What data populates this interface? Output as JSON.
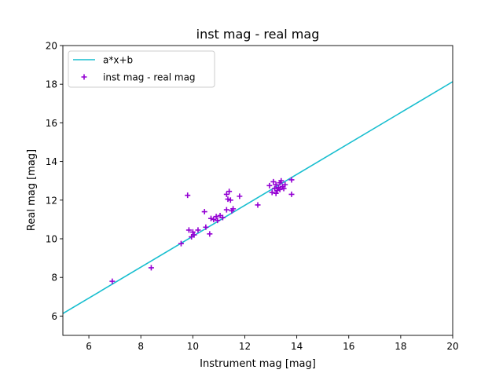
{
  "chart_data": {
    "type": "scatter",
    "title": "inst mag - real mag",
    "xlabel": "Instrument mag [mag]",
    "ylabel": "Real mag [mag]",
    "xlim": [
      5,
      20
    ],
    "ylim": [
      5,
      20
    ],
    "xticks": [
      "6",
      "8",
      "10",
      "12",
      "14",
      "16",
      "18",
      "20"
    ],
    "yticks": [
      "6",
      "8",
      "10",
      "12",
      "14",
      "16",
      "18",
      "20"
    ],
    "grid": false,
    "legend_position": "upper-left",
    "fit_line": {
      "label": "a*x+b",
      "color": "#17becf",
      "points": [
        [
          5.0,
          6.13
        ],
        [
          20.0,
          18.13
        ]
      ]
    },
    "series": [
      {
        "name": "inst mag - real mag",
        "marker": "+",
        "color": "#9400d3",
        "points": [
          [
            6.9,
            7.8
          ],
          [
            8.4,
            8.5
          ],
          [
            9.55,
            9.75
          ],
          [
            9.8,
            12.25
          ],
          [
            9.85,
            10.45
          ],
          [
            9.95,
            10.1
          ],
          [
            10.0,
            10.35
          ],
          [
            10.05,
            10.2
          ],
          [
            10.2,
            10.45
          ],
          [
            10.45,
            11.4
          ],
          [
            10.5,
            10.6
          ],
          [
            10.65,
            10.25
          ],
          [
            10.7,
            11.05
          ],
          [
            10.8,
            11.0
          ],
          [
            10.9,
            11.15
          ],
          [
            10.95,
            10.95
          ],
          [
            11.05,
            11.2
          ],
          [
            11.15,
            11.1
          ],
          [
            11.3,
            12.3
          ],
          [
            11.3,
            11.5
          ],
          [
            11.35,
            12.05
          ],
          [
            11.4,
            12.45
          ],
          [
            11.45,
            12.0
          ],
          [
            11.5,
            11.45
          ],
          [
            11.55,
            11.55
          ],
          [
            11.8,
            12.2
          ],
          [
            12.5,
            11.75
          ],
          [
            12.95,
            12.75
          ],
          [
            13.05,
            12.4
          ],
          [
            13.1,
            12.95
          ],
          [
            13.15,
            12.6
          ],
          [
            13.2,
            12.8
          ],
          [
            13.2,
            12.35
          ],
          [
            13.25,
            12.5
          ],
          [
            13.3,
            12.65
          ],
          [
            13.35,
            12.9
          ],
          [
            13.35,
            12.55
          ],
          [
            13.4,
            13.0
          ],
          [
            13.45,
            12.7
          ],
          [
            13.5,
            12.6
          ],
          [
            13.55,
            12.8
          ],
          [
            13.8,
            12.3
          ],
          [
            13.8,
            13.05
          ]
        ]
      }
    ]
  }
}
